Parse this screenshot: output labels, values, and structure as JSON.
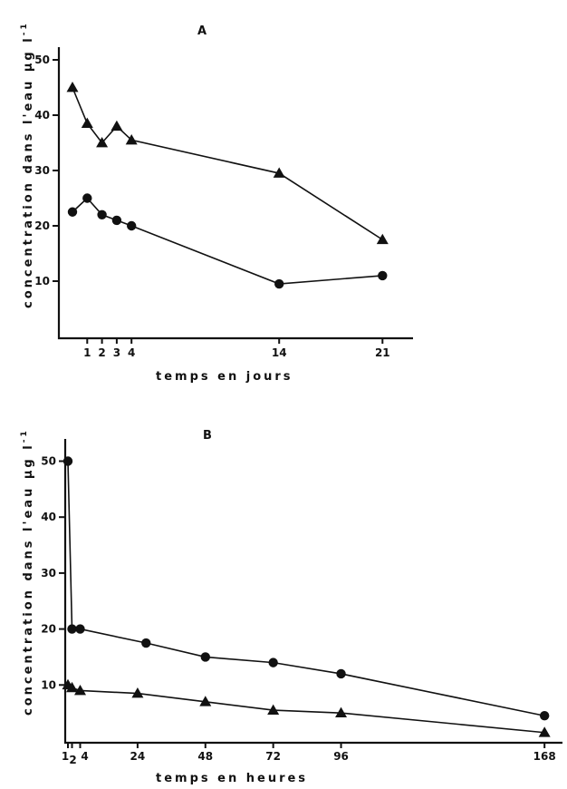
{
  "chart_data": [
    {
      "type": "line",
      "panel": "A",
      "xlabel": "temps en jours",
      "ylabel": "concentration dans l'eau µg l",
      "ylabel_superscript": "-1",
      "y_ticks": [
        10,
        20,
        30,
        40,
        50
      ],
      "x_ticks": [
        1,
        2,
        3,
        4,
        14,
        21
      ],
      "x_tick_labels": [
        "1",
        "2",
        "3",
        "4",
        "14",
        "21"
      ],
      "xlim": [
        -0.2,
        23.5
      ],
      "ylim": [
        0,
        55
      ],
      "series": [
        {
          "marker": "triangle",
          "x": [
            0,
            1,
            2,
            3,
            4,
            14,
            21
          ],
          "values": [
            45,
            38.5,
            35,
            38,
            35.5,
            29.5,
            17.5
          ]
        },
        {
          "marker": "circle",
          "x": [
            0,
            1,
            2,
            3,
            4,
            14,
            21
          ],
          "values": [
            22.5,
            25,
            22,
            21,
            20,
            9.5,
            11
          ]
        }
      ]
    },
    {
      "type": "line",
      "panel": "B",
      "xlabel": "temps en heures",
      "ylabel": "concentration dans l'eau µg l",
      "ylabel_superscript": "-1",
      "y_ticks": [
        10,
        20,
        30,
        40,
        50
      ],
      "x_ticks": [
        1,
        2,
        4,
        24,
        48,
        72,
        96,
        168
      ],
      "x_tick_labels": [
        "1",
        "2",
        "4",
        "24",
        "48",
        "72",
        "96",
        "168"
      ],
      "xlim": [
        0,
        180
      ],
      "ylim": [
        0,
        55
      ],
      "series": [
        {
          "marker": "circle",
          "x": [
            1,
            2,
            4,
            27,
            48,
            72,
            96,
            168
          ],
          "values": [
            50,
            20,
            20,
            17.5,
            15,
            14,
            12,
            4.5
          ]
        },
        {
          "marker": "triangle",
          "x": [
            1,
            2,
            4,
            24,
            48,
            72,
            96,
            168
          ],
          "values": [
            10,
            9.5,
            9,
            8.5,
            7,
            5.5,
            5,
            1.5
          ]
        }
      ]
    }
  ]
}
